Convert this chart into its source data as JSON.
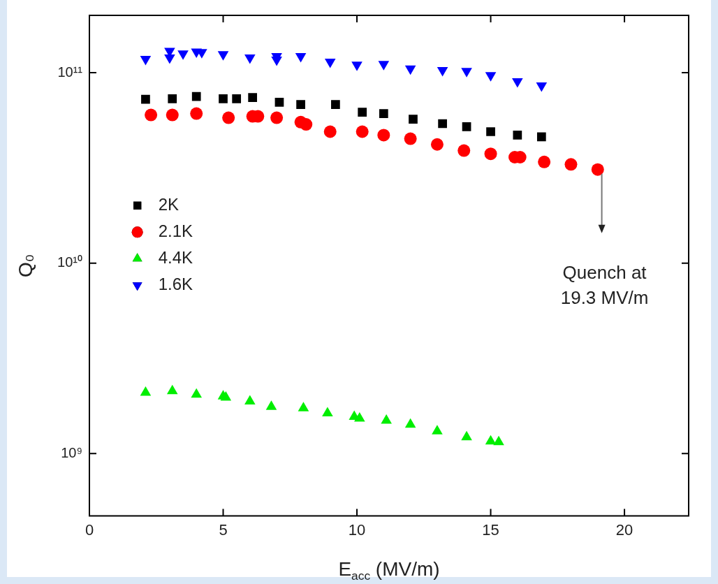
{
  "chart_data": {
    "type": "scatter",
    "xlabel": "E$_{acc}$ (MV/m)",
    "ylabel": "Q₀",
    "log": "y",
    "legend": "left",
    "xlim": [
      0,
      22.4
    ],
    "xticks": [
      0,
      5,
      10,
      15,
      20
    ],
    "ylim": [
      470000000,
      200000000000
    ],
    "yticks": [
      {
        "value": 1000000000,
        "label": "10⁹"
      },
      {
        "value": 10000000000,
        "label": "10¹⁰"
      },
      {
        "value": 100000000000,
        "label": "10¹¹"
      }
    ],
    "annotations": [
      "Quench at 19.3 MV/m"
    ],
    "series": [
      {
        "name": "2K",
        "color": "#000000",
        "marker": "square",
        "x": [
          2.1,
          3.1,
          4,
          5,
          5.5,
          6.1,
          7.1,
          7.9,
          9.2,
          10.2,
          11,
          12.1,
          13.2,
          14.1,
          15,
          16,
          16.9
        ],
        "values": [
          72500000000,
          73000000000,
          75000000000,
          73000000000,
          73000000000,
          74000000000,
          70000000000,
          68000000000,
          68000000000,
          62000000000,
          61000000000,
          57000000000,
          54000000000,
          52000000000,
          49000000000,
          47000000000,
          46000000000
        ]
      },
      {
        "name": "2.1K",
        "color": "#ff0000",
        "marker": "circle",
        "x": [
          2.3,
          3.1,
          4,
          5.2,
          6.1,
          6.3,
          7,
          7.9,
          8.1,
          9,
          10.2,
          11,
          12,
          13,
          14,
          15,
          15.9,
          16.1,
          17,
          18,
          19
        ],
        "values": [
          60000000000,
          60000000000,
          61000000000,
          58000000000,
          59000000000,
          59000000000,
          58000000000,
          55000000000,
          53500000000,
          49000000000,
          49000000000,
          47000000000,
          45000000000,
          42000000000,
          39000000000,
          37500000000,
          36000000000,
          36000000000,
          34000000000,
          33000000000,
          31000000000
        ]
      },
      {
        "name": "4.4K",
        "color": "#00ee00",
        "marker": "triangle",
        "x": [
          2.1,
          3.1,
          4,
          5,
          5.1,
          6,
          6.8,
          8,
          8.9,
          9.9,
          10.1,
          11.1,
          12,
          13,
          14.1,
          15,
          15.3
        ],
        "values": [
          2090000000,
          2130000000,
          2040000000,
          2000000000,
          1970000000,
          1880000000,
          1760000000,
          1730000000,
          1630000000,
          1560000000,
          1530000000,
          1490000000,
          1420000000,
          1310000000,
          1220000000,
          1160000000,
          1150000000
        ]
      },
      {
        "name": "1.6K",
        "color": "#0000ff",
        "marker": "triangle-down",
        "x": [
          2.1,
          3,
          3,
          3.5,
          4,
          4.2,
          5,
          6,
          7,
          7,
          7.9,
          9,
          10,
          11,
          12,
          13.2,
          14.1,
          15,
          16,
          16.9
        ],
        "values": [
          118000000000,
          130000000000,
          120000000000,
          126000000000,
          129000000000,
          128000000000,
          125000000000,
          120000000000,
          122000000000,
          117000000000,
          122000000000,
          114000000000,
          110000000000,
          111000000000,
          105000000000,
          103000000000,
          102000000000,
          97000000000,
          90000000000,
          85500000000
        ]
      }
    ]
  }
}
